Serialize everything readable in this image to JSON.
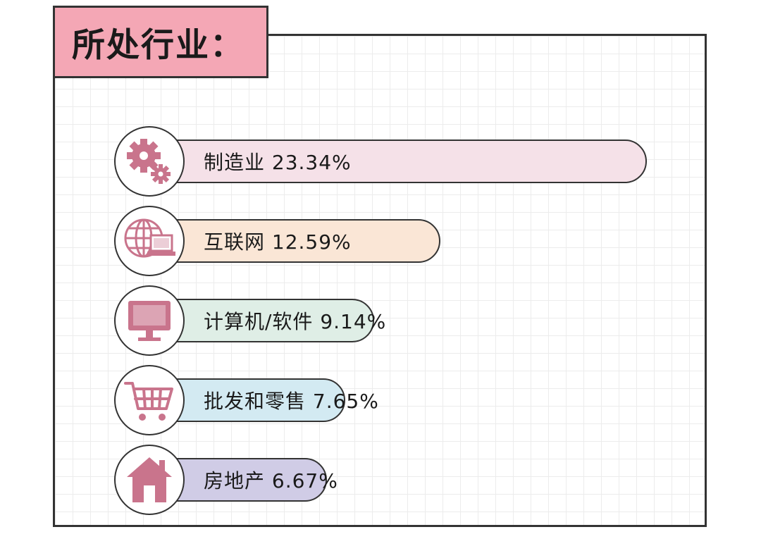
{
  "title": "所处行业：",
  "colors": {
    "title_bg": "#f4a7b5",
    "icon": "#c9748c",
    "bars": [
      "#f5e1e8",
      "#fae6d6",
      "#dfeee6",
      "#d3eaf2",
      "#d0cce6"
    ]
  },
  "chart_data": {
    "type": "bar",
    "orientation": "horizontal",
    "title": "所处行业：",
    "categories": [
      "制造业",
      "互联网",
      "计算机/软件",
      "批发和零售",
      "房地产"
    ],
    "values": [
      23.34,
      12.59,
      9.14,
      7.65,
      6.67
    ],
    "labels": [
      "制造业 23.34%",
      "互联网 12.59%",
      "计算机/软件 9.14%",
      "批发和零售 7.65%",
      "房地产 6.67%"
    ],
    "icons": [
      "gears-icon",
      "globe-laptop-icon",
      "monitor-icon",
      "shopping-cart-icon",
      "house-icon"
    ],
    "unit": "%",
    "grid": true
  }
}
